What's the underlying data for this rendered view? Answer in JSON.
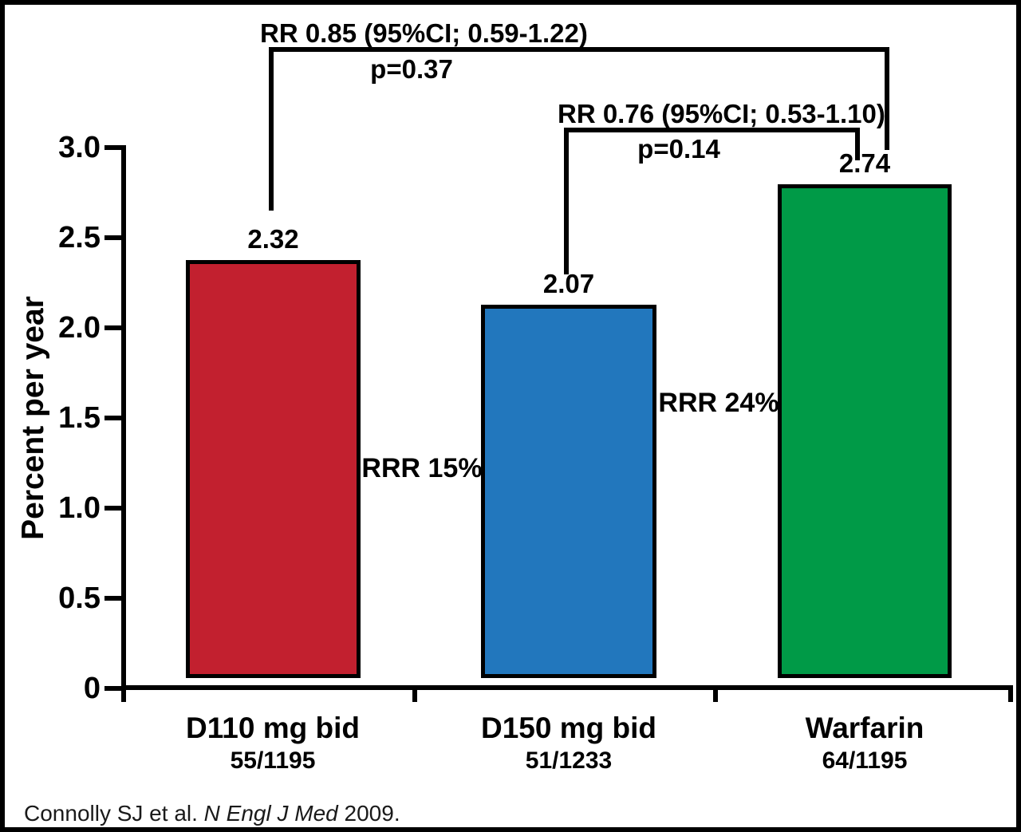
{
  "chart_data": {
    "type": "bar",
    "title": "",
    "xlabel": "",
    "ylabel": "Percent per year",
    "ylim": [
      0,
      3.0
    ],
    "grid": false,
    "legend_position": "none",
    "y_ticks": [
      "3.0",
      "2.5",
      "2.0",
      "1.5",
      "1.0",
      "0.5",
      "0"
    ],
    "categories": [
      "D110 mg bid",
      "D150 mg bid",
      "Warfarin"
    ],
    "counts": [
      "55/1195",
      "51/1233",
      "64/1195"
    ],
    "values": [
      2.32,
      2.07,
      2.74
    ],
    "value_labels": [
      "2.32",
      "2.07",
      "2.74"
    ],
    "bar_colors": [
      "#C2202F",
      "#2277BD",
      "#009A47"
    ],
    "annotations": {
      "comparison_1": {
        "rr": "RR 0.85 (95%CI; 0.59-1.22)",
        "p": "p=0.37"
      },
      "comparison_2": {
        "rr": "RR 0.76 (95%CI; 0.53-1.10)",
        "p": "p=0.14"
      },
      "rrr_1": "RRR 15%",
      "rrr_2": "RRR 24%"
    }
  },
  "citation": {
    "prefix": "Connolly SJ et al. ",
    "journal": "N Engl J Med",
    "suffix": " 2009."
  }
}
